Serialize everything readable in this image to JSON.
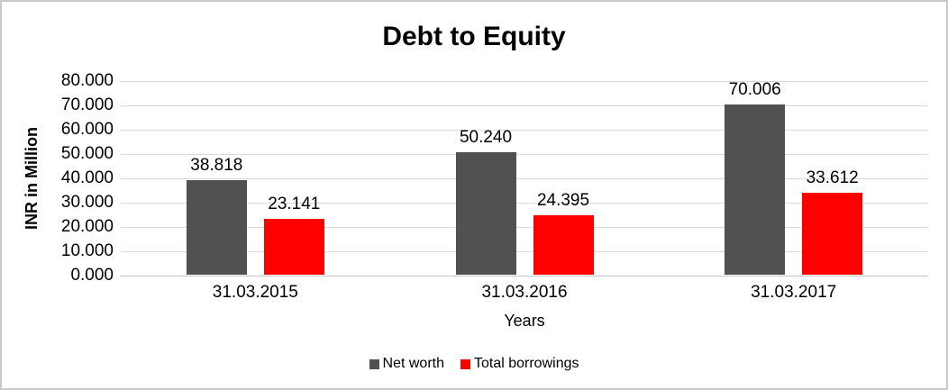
{
  "chart_data": {
    "type": "bar",
    "title": "Debt to Equity",
    "xlabel": "Years",
    "ylabel": "INR in Million",
    "categories": [
      "31.03.2015",
      "31.03.2016",
      "31.03.2017"
    ],
    "series": [
      {
        "name": "Net worth",
        "color": "#515151",
        "values": [
          38.818,
          50.24,
          70.006
        ],
        "labels": [
          "38.818",
          "50.240",
          "70.006"
        ]
      },
      {
        "name": "Total borrowings",
        "color": "#ff0000",
        "values": [
          23.141,
          24.395,
          33.612
        ],
        "labels": [
          "23.141",
          "24.395",
          "33.612"
        ]
      }
    ],
    "ylim": [
      0,
      80
    ],
    "yticks": [
      "80.000",
      "70.000",
      "60.000",
      "50.000",
      "40.000",
      "30.000",
      "20.000",
      "10.000",
      "0.000"
    ],
    "grid": true,
    "legend_position": "bottom",
    "colors": {
      "gridline": "#d9d9d9",
      "axis_line": "#c6c6c6",
      "text": "#000000",
      "border": "#c9c9c9",
      "background": "#ffffff"
    }
  }
}
